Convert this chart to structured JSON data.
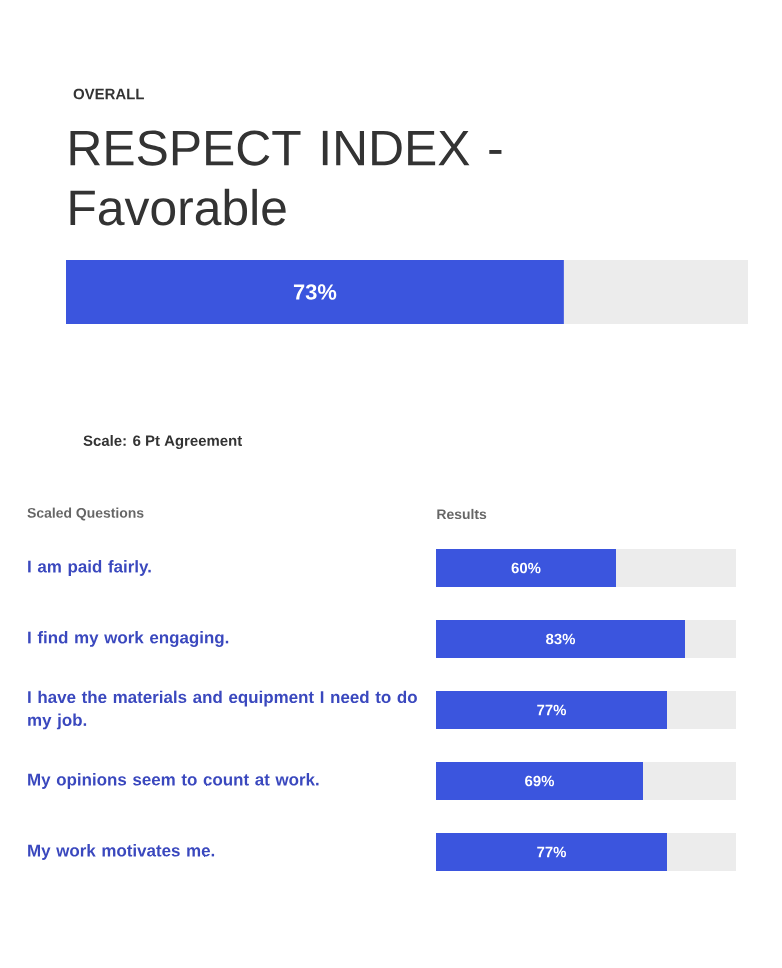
{
  "chart_data": [
    {
      "type": "bar",
      "orientation": "horizontal",
      "stacked": true,
      "subtitle": "OVERALL",
      "title": "RESPECT INDEX - Favorable",
      "categories": [
        null
      ],
      "xlim": [
        0,
        100
      ],
      "tick_labels": false,
      "series": [
        {
          "color": "#3b55de",
          "values": [
            73
          ],
          "value_labels": [
            "73%"
          ]
        },
        {
          "color": "#ececec",
          "values": [
            27
          ]
        }
      ]
    },
    {
      "type": "bar",
      "orientation": "horizontal",
      "stacked": true,
      "annotations": [
        "Scale: 6 Pt Agreement"
      ],
      "ylabel": "Scaled Questions",
      "xlabel": "Results",
      "categories": [
        "I am paid fairly.",
        "I find my work engaging.",
        "I have the materials and equipment I need to do my job.",
        "My opinions seem to count at work.",
        "My work motivates me."
      ],
      "xlim": [
        0,
        100
      ],
      "tick_labels": "y",
      "series": [
        {
          "color": "#3b55de",
          "values": [
            60,
            83,
            77,
            69,
            77
          ],
          "value_labels": [
            "60%",
            "83%",
            "77%",
            "69%",
            "77%"
          ]
        },
        {
          "color": "#ececec",
          "values": [
            40,
            17,
            23,
            31,
            23
          ]
        }
      ]
    }
  ]
}
